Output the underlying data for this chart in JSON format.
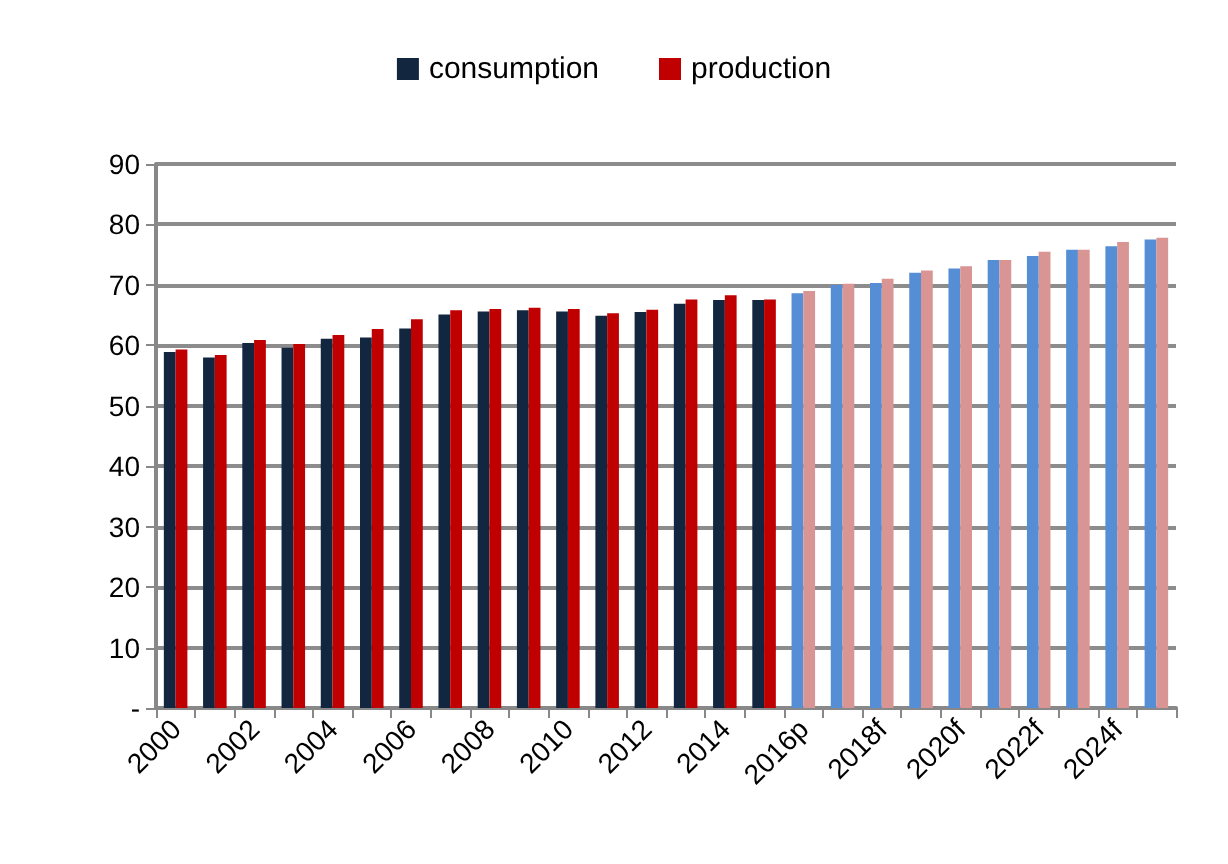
{
  "chart_data": {
    "type": "bar",
    "categories": [
      "2000",
      null,
      "2002",
      null,
      "2004",
      null,
      "2006",
      null,
      "2008",
      null,
      "2010",
      null,
      "2012",
      null,
      "2014",
      null,
      "2016p",
      null,
      "2018f",
      null,
      "2020f",
      null,
      "2022f",
      null,
      "2024f",
      null
    ],
    "series": [
      {
        "name": "consumption",
        "color": "#12263f",
        "colors": [
          "#12263f",
          "#12263f",
          "#12263f",
          "#12263f",
          "#12263f",
          "#12263f",
          "#12263f",
          "#12263f",
          "#12263f",
          "#12263f",
          "#12263f",
          "#12263f",
          "#12263f",
          "#12263f",
          "#12263f",
          "#12263f",
          "#558ed5",
          "#558ed5",
          "#558ed5",
          "#558ed5",
          "#558ed5",
          "#558ed5",
          "#558ed5",
          "#558ed5",
          "#558ed5",
          "#558ed5"
        ],
        "values": [
          58.9,
          58.0,
          60.4,
          59.6,
          61.1,
          61.3,
          62.8,
          65.1,
          65.6,
          65.8,
          65.6,
          64.9,
          65.5,
          66.9,
          67.5,
          67.5,
          68.6,
          70.0,
          70.3,
          72.0,
          72.7,
          74.1,
          74.8,
          75.8,
          76.4,
          77.5
        ]
      },
      {
        "name": "production",
        "color": "#c00000",
        "colors": [
          "#c00000",
          "#c00000",
          "#c00000",
          "#c00000",
          "#c00000",
          "#c00000",
          "#c00000",
          "#c00000",
          "#c00000",
          "#c00000",
          "#c00000",
          "#c00000",
          "#c00000",
          "#c00000",
          "#c00000",
          "#c00000",
          "#d99594",
          "#d99594",
          "#d99594",
          "#d99594",
          "#d99594",
          "#d99594",
          "#d99594",
          "#d99594",
          "#d99594",
          "#d99594"
        ],
        "values": [
          59.3,
          58.4,
          60.9,
          60.2,
          61.7,
          62.7,
          64.3,
          65.8,
          66.0,
          66.2,
          66.0,
          65.3,
          65.9,
          67.6,
          68.3,
          67.6,
          69.0,
          70.2,
          71.0,
          72.4,
          73.1,
          74.1,
          75.5,
          75.8,
          77.1,
          77.8
        ]
      }
    ],
    "ylim": [
      0,
      90
    ],
    "yticks": [
      {
        "value": 0,
        "label": "-"
      },
      10,
      20,
      30,
      40,
      50,
      60,
      70,
      80,
      90
    ],
    "grid": "y",
    "legend": "top"
  }
}
